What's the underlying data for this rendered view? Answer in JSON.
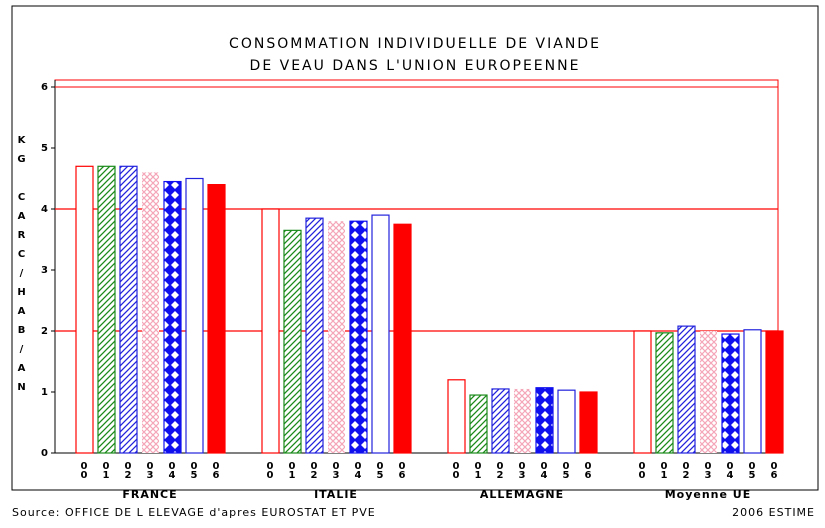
{
  "chart_data": {
    "type": "bar",
    "title": [
      "CONSOMMATION INDIVIDUELLE DE VIANDE",
      "DE VEAU DANS L'UNION EUROPEENNE"
    ],
    "y_label": "KG CARC/HAB/AN",
    "categories": [
      "FRANCE",
      "ITALIE",
      "ALLEMAGNE",
      "Moyenne UE"
    ],
    "series": [
      {
        "name": "00",
        "color": "#ff0000",
        "pattern": "outline",
        "values": [
          4.7,
          4.0,
          1.2,
          2.0
        ]
      },
      {
        "name": "01",
        "color": "#1a8a1a",
        "pattern": "hatch",
        "values": [
          4.7,
          3.65,
          0.95,
          1.97
        ]
      },
      {
        "name": "02",
        "color": "#2222dd",
        "pattern": "hatch",
        "values": [
          4.7,
          3.85,
          1.05,
          2.08
        ]
      },
      {
        "name": "03",
        "color": "#f4a6b8",
        "pattern": "cross",
        "values": [
          4.6,
          3.8,
          1.05,
          2.0
        ]
      },
      {
        "name": "04",
        "color": "#1010ee",
        "pattern": "diamond",
        "values": [
          4.45,
          3.8,
          1.07,
          1.95
        ]
      },
      {
        "name": "05",
        "color": "#2222dd",
        "pattern": "outline",
        "values": [
          4.5,
          3.9,
          1.03,
          2.02
        ]
      },
      {
        "name": "06",
        "color": "#ff0000",
        "pattern": "solid",
        "values": [
          4.4,
          3.75,
          1.0,
          2.0
        ]
      }
    ],
    "ylim": [
      0,
      6
    ],
    "yticks": [
      0,
      1,
      2,
      3,
      4,
      5,
      6
    ],
    "reflines": [
      2,
      4
    ],
    "source": "Source: OFFICE DE L ELEVAGE d'apres EUROSTAT ET PVE",
    "note": "2006 ESTIME"
  }
}
